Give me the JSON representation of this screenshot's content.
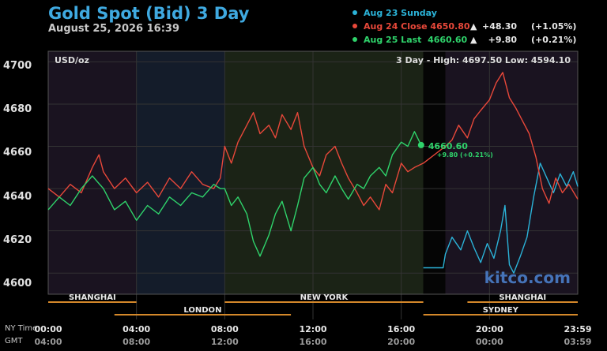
{
  "title": "Gold Spot (Bid) 3 Day",
  "datetime": "August 25, 2026 16:39",
  "legend": [
    {
      "label": "Aug 23 Sunday",
      "color": "#2bb3d8",
      "triangle": "",
      "change": "",
      "pct": ""
    },
    {
      "label": "Aug 24 Close 4650.80",
      "color": "#e8483a",
      "triangle": "▲",
      "change": "+48.30",
      "pct": "(+1.05%)"
    },
    {
      "label": "Aug 25 Last  4660.60",
      "color": "#2fd36b",
      "triangle": "▲",
      "change": "+9.80",
      "pct": "(+0.21%)"
    }
  ],
  "unit_label": "USD/oz",
  "range_label": "3 Day - High: 4697.50   Low: 4594.10",
  "last_label": {
    "price": "4660.60",
    "change": "+9.80 (+0.21%)"
  },
  "watermark": "kitco.com",
  "sessions": [
    {
      "name": "SHANGHAI"
    },
    {
      "name": "NEW YORK"
    },
    {
      "name": "SHANGHAI"
    },
    {
      "name": "LONDON"
    },
    {
      "name": "SYDNEY"
    }
  ],
  "x_axis": {
    "row1_label": "NY Time",
    "row2_label": "GMT",
    "ny_ticks": [
      "00:00",
      "04:00",
      "08:00",
      "12:00",
      "16:00",
      "20:00",
      "23:59"
    ],
    "gmt_ticks": [
      "04:00",
      "08:00",
      "12:00",
      "16:00",
      "20:00",
      "00:00",
      "03:59"
    ]
  },
  "colors": {
    "sunday": "#2bb3d8",
    "aug24": "#e8483a",
    "aug25": "#2fd36b",
    "title": "#3fa9e0",
    "session": "#d4882a"
  },
  "chart_data": {
    "type": "line",
    "title": "Gold Spot (Bid) 3 Day",
    "ylabel": "USD/oz",
    "ylim": [
      4590,
      4705
    ],
    "yticks": [
      4600,
      4620,
      4640,
      4660,
      4680,
      4700
    ],
    "x_unit": "NY time (hours)",
    "xlim": [
      0,
      24
    ],
    "series": [
      {
        "name": "Aug 23 Sunday",
        "color": "#2bb3d8",
        "x": [
          17,
          17.9,
          18.0,
          18.3,
          18.7,
          19.0,
          19.3,
          19.6,
          19.9,
          20.2,
          20.5,
          20.7,
          20.9,
          21.1,
          21.4,
          21.7,
          22.0,
          22.3,
          22.6,
          22.9,
          23.2,
          23.5,
          23.8,
          24.0
        ],
        "y": [
          4602.5,
          4602.5,
          4609,
          4617,
          4611,
          4620,
          4612,
          4605,
          4614,
          4607,
          4620,
          4632,
          4604,
          4600,
          4608,
          4617,
          4636,
          4652,
          4645,
          4638,
          4647,
          4641,
          4648,
          4641
        ]
      },
      {
        "name": "Aug 24 Close 4650.80",
        "color": "#e8483a",
        "x": [
          0,
          0.5,
          1.0,
          1.5,
          2.0,
          2.3,
          2.5,
          3.0,
          3.5,
          4.0,
          4.5,
          5.0,
          5.5,
          6.0,
          6.5,
          7.0,
          7.5,
          7.8,
          8.0,
          8.3,
          8.6,
          9.0,
          9.3,
          9.6,
          10.0,
          10.3,
          10.6,
          11.0,
          11.3,
          11.6,
          12.0,
          12.3,
          12.6,
          13.0,
          13.3,
          13.6,
          14.0,
          14.3,
          14.6,
          15.0,
          15.3,
          15.6,
          16.0,
          16.3,
          16.6,
          17.0,
          18.0,
          18.3,
          18.6,
          19.0,
          19.3,
          19.6,
          20.0,
          20.3,
          20.6,
          20.9,
          21.2,
          21.5,
          21.8,
          22.1,
          22.4,
          22.7,
          23.0,
          23.3,
          23.6,
          24.0
        ],
        "y": [
          4640,
          4636,
          4642,
          4638,
          4650,
          4656,
          4648,
          4640,
          4645,
          4638,
          4643,
          4636,
          4645,
          4640,
          4648,
          4642,
          4640,
          4645,
          4660,
          4652,
          4662,
          4670,
          4676,
          4666,
          4670,
          4664,
          4675,
          4668,
          4676,
          4660,
          4650,
          4646,
          4656,
          4660,
          4652,
          4645,
          4638,
          4632,
          4636,
          4630,
          4642,
          4638,
          4652,
          4648,
          4650,
          4652,
          4660,
          4663,
          4670,
          4664,
          4673,
          4677,
          4682,
          4690,
          4695,
          4683,
          4678,
          4672,
          4666,
          4655,
          4640,
          4633,
          4645,
          4638,
          4642,
          4635
        ]
      },
      {
        "name": "Aug 25 Last  4660.60",
        "color": "#2fd36b",
        "x": [
          0,
          0.5,
          1.0,
          1.5,
          2.0,
          2.5,
          3.0,
          3.5,
          4.0,
          4.5,
          5.0,
          5.5,
          6.0,
          6.5,
          7.0,
          7.5,
          7.8,
          8.0,
          8.3,
          8.6,
          9.0,
          9.3,
          9.6,
          10.0,
          10.3,
          10.6,
          11.0,
          11.3,
          11.6,
          12.0,
          12.3,
          12.6,
          13.0,
          13.3,
          13.6,
          14.0,
          14.3,
          14.6,
          15.0,
          15.3,
          15.6,
          16.0,
          16.3,
          16.6,
          16.9
        ],
        "y": [
          4630,
          4636,
          4632,
          4640,
          4646,
          4640,
          4630,
          4634,
          4625,
          4632,
          4628,
          4636,
          4632,
          4638,
          4636,
          4642,
          4640,
          4640,
          4632,
          4636,
          4628,
          4615,
          4608,
          4618,
          4628,
          4634,
          4620,
          4632,
          4645,
          4650,
          4642,
          4638,
          4646,
          4640,
          4635,
          4642,
          4640,
          4646,
          4650,
          4646,
          4656,
          4662,
          4660,
          4667,
          4660.6
        ]
      }
    ]
  }
}
